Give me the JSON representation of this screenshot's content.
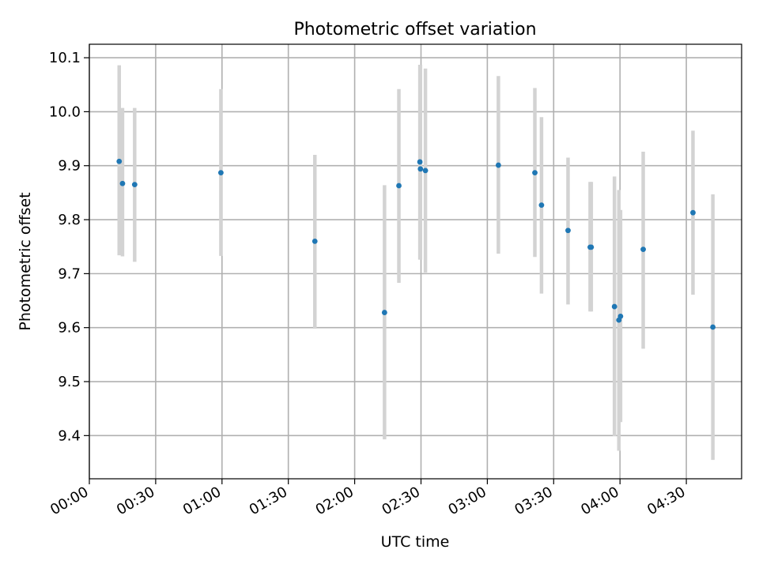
{
  "chart_data": {
    "type": "scatter",
    "title": "Photometric offset variation",
    "xlabel": "UTC time",
    "ylabel": "Photometric offset",
    "xlim_minutes": [
      0,
      295
    ],
    "ylim": [
      9.32,
      10.125
    ],
    "x_ticks": [
      {
        "minutes": 0,
        "label": "00:00"
      },
      {
        "minutes": 30,
        "label": "00:30"
      },
      {
        "minutes": 60,
        "label": "01:00"
      },
      {
        "minutes": 90,
        "label": "01:30"
      },
      {
        "minutes": 120,
        "label": "02:00"
      },
      {
        "minutes": 150,
        "label": "02:30"
      },
      {
        "minutes": 180,
        "label": "03:00"
      },
      {
        "minutes": 210,
        "label": "03:30"
      },
      {
        "minutes": 240,
        "label": "04:00"
      },
      {
        "minutes": 270,
        "label": "04:30"
      }
    ],
    "y_ticks": [
      {
        "value": 9.4,
        "label": "9.4"
      },
      {
        "value": 9.5,
        "label": "9.5"
      },
      {
        "value": 9.6,
        "label": "9.6"
      },
      {
        "value": 9.7,
        "label": "9.7"
      },
      {
        "value": 9.8,
        "label": "9.8"
      },
      {
        "value": 9.9,
        "label": "9.9"
      },
      {
        "value": 10.0,
        "label": "10.0"
      },
      {
        "value": 10.1,
        "label": "10.1"
      }
    ],
    "grid": true,
    "point_color": "#1f77b4",
    "errorbar_color": "#d3d3d3",
    "points": [
      {
        "time": "00:13:30",
        "minutes": 13.5,
        "y": 9.908,
        "err_low": 9.734,
        "err_high": 10.086
      },
      {
        "time": "00:15:00",
        "minutes": 15.0,
        "y": 9.867,
        "err_low": 9.732,
        "err_high": 10.007
      },
      {
        "time": "00:20:30",
        "minutes": 20.5,
        "y": 9.865,
        "err_low": 9.722,
        "err_high": 10.007
      },
      {
        "time": "00:59:30",
        "minutes": 59.5,
        "y": 9.887,
        "err_low": 9.733,
        "err_high": 10.042
      },
      {
        "time": "01:42:00",
        "minutes": 102.0,
        "y": 9.76,
        "err_low": 9.598,
        "err_high": 9.92
      },
      {
        "time": "02:13:30",
        "minutes": 133.5,
        "y": 9.628,
        "err_low": 9.393,
        "err_high": 9.864
      },
      {
        "time": "02:20:00",
        "minutes": 140.0,
        "y": 9.863,
        "err_low": 9.683,
        "err_high": 10.042
      },
      {
        "time": "02:29:30",
        "minutes": 149.5,
        "y": 9.907,
        "err_low": 9.726,
        "err_high": 10.087
      },
      {
        "time": "02:29:45",
        "minutes": 149.75,
        "y": 9.894,
        "err_low": 9.726,
        "err_high": 10.087
      },
      {
        "time": "02:32:00",
        "minutes": 152.0,
        "y": 9.891,
        "err_low": 9.702,
        "err_high": 10.08
      },
      {
        "time": "03:05:00",
        "minutes": 185.0,
        "y": 9.901,
        "err_low": 9.737,
        "err_high": 10.066
      },
      {
        "time": "03:21:30",
        "minutes": 201.5,
        "y": 9.887,
        "err_low": 9.731,
        "err_high": 10.044
      },
      {
        "time": "03:24:30",
        "minutes": 204.5,
        "y": 9.827,
        "err_low": 9.663,
        "err_high": 9.99
      },
      {
        "time": "03:36:30",
        "minutes": 216.5,
        "y": 9.78,
        "err_low": 9.643,
        "err_high": 9.915
      },
      {
        "time": "03:46:30",
        "minutes": 226.5,
        "y": 9.749,
        "err_low": 9.63,
        "err_high": 9.87
      },
      {
        "time": "03:47:00",
        "minutes": 227.0,
        "y": 9.749,
        "err_low": 9.63,
        "err_high": 9.87
      },
      {
        "time": "03:57:30",
        "minutes": 237.5,
        "y": 9.639,
        "err_low": 9.399,
        "err_high": 9.88
      },
      {
        "time": "03:59:30",
        "minutes": 239.5,
        "y": 9.614,
        "err_low": 9.372,
        "err_high": 9.855
      },
      {
        "time": "04:00:15",
        "minutes": 240.25,
        "y": 9.621,
        "err_low": 9.425,
        "err_high": 9.818
      },
      {
        "time": "04:10:30",
        "minutes": 250.5,
        "y": 9.745,
        "err_low": 9.561,
        "err_high": 9.926
      },
      {
        "time": "04:33:00",
        "minutes": 273.0,
        "y": 9.813,
        "err_low": 9.661,
        "err_high": 9.965
      },
      {
        "time": "04:42:00",
        "minutes": 282.0,
        "y": 9.601,
        "err_low": 9.355,
        "err_high": 9.847
      }
    ]
  }
}
